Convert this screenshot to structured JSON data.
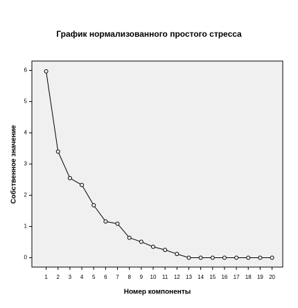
{
  "chart_data": {
    "type": "line",
    "title": "График нормализованного простого стресса",
    "x_label": "Номер компоненты",
    "y_label": "Собственное значение",
    "x": [
      1,
      2,
      3,
      4,
      5,
      6,
      7,
      8,
      9,
      10,
      11,
      12,
      13,
      14,
      15,
      16,
      17,
      18,
      19,
      20
    ],
    "series": [
      {
        "color": "#000000",
        "values": [
          5.97,
          3.4,
          2.55,
          2.33,
          1.68,
          1.16,
          1.09,
          0.64,
          0.51,
          0.35,
          0.25,
          0.12,
          0.0,
          0.0,
          0.0,
          0.0,
          0.0,
          0.0,
          0.0,
          0.0
        ]
      }
    ],
    "xlim": [
      -0.2,
      20.9
    ],
    "ylim": [
      -0.3,
      6.3
    ],
    "xticks": [
      1,
      2,
      3,
      4,
      5,
      6,
      7,
      8,
      9,
      10,
      11,
      12,
      13,
      14,
      15,
      16,
      17,
      18,
      19,
      20
    ],
    "yticks": [
      0,
      1,
      2,
      3,
      4,
      5,
      6
    ]
  }
}
